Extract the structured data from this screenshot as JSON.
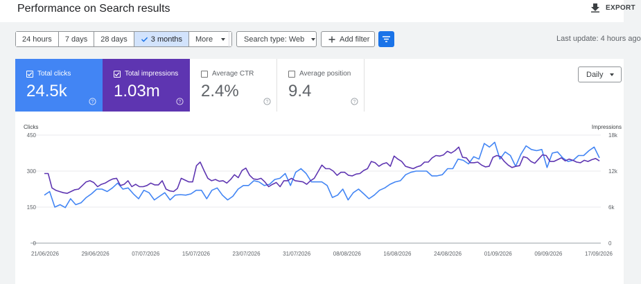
{
  "header": {
    "title": "Performance on Search results",
    "export_label": "EXPORT"
  },
  "toolbar": {
    "ranges": [
      {
        "label": "24 hours",
        "active": false
      },
      {
        "label": "7 days",
        "active": false
      },
      {
        "label": "28 days",
        "active": false
      },
      {
        "label": "3 months",
        "active": true
      },
      {
        "label": "More",
        "active": false
      }
    ],
    "search_type_label": "Search type: Web",
    "add_filter_label": "Add filter",
    "last_update": "Last update: 4 hours ago"
  },
  "metrics": {
    "clicks": {
      "label": "Total clicks",
      "value": "24.5k",
      "checked": true,
      "color": "#4285f4"
    },
    "impressions": {
      "label": "Total impressions",
      "value": "1.03m",
      "checked": true,
      "color": "#5e35b1"
    },
    "ctr": {
      "label": "Average CTR",
      "value": "2.4%",
      "checked": false
    },
    "position": {
      "label": "Average position",
      "value": "9.4",
      "checked": false
    }
  },
  "granularity": "Daily",
  "icons": {
    "export": "download-icon",
    "filter": "filter-list-icon",
    "help": "help-circle-icon",
    "check": "check-icon",
    "add": "plus-icon"
  },
  "chart_data": {
    "type": "line",
    "left_axis": {
      "title": "Clicks",
      "ticks": [
        "0",
        "150",
        "300",
        "450"
      ],
      "range": [
        0,
        450
      ]
    },
    "right_axis": {
      "title": "Impressions",
      "ticks": [
        "0",
        "6k",
        "12k",
        "18k"
      ],
      "range": [
        0,
        18000
      ]
    },
    "x_labels": [
      "21/06/2026",
      "29/06/2026",
      "07/07/2026",
      "15/07/2026",
      "23/07/2026",
      "31/07/2026",
      "08/08/2026",
      "16/08/2026",
      "24/08/2026",
      "01/09/2026",
      "09/09/2026",
      "17/09/2026"
    ],
    "grid": true,
    "series": [
      {
        "name": "Clicks",
        "color": "#4285f4",
        "axis": "left",
        "values": [
          200,
          215,
          150,
          160,
          148,
          185,
          160,
          168,
          190,
          205,
          225,
          225,
          215,
          230,
          250,
          225,
          230,
          205,
          185,
          220,
          210,
          180,
          195,
          210,
          180,
          200,
          202,
          200,
          205,
          220,
          220,
          185,
          220,
          230,
          200,
          180,
          195,
          225,
          240,
          240,
          260,
          255,
          240,
          245,
          265,
          270,
          290,
          240,
          295,
          310,
          290,
          255,
          255,
          255,
          240,
          190,
          200,
          225,
          180,
          210,
          225,
          205,
          185,
          200,
          220,
          230,
          245,
          255,
          260,
          285,
          295,
          300,
          300,
          300,
          280,
          280,
          285,
          310,
          310,
          350,
          345,
          330,
          360,
          350,
          415,
          400,
          420,
          350,
          380,
          365,
          320,
          370,
          405,
          390,
          385,
          390,
          315,
          375,
          380,
          355,
          340,
          345,
          365,
          365,
          385,
          400,
          355
        ]
      },
      {
        "name": "Impressions",
        "color": "#5e35b1",
        "axis": "right",
        "values": [
          11600,
          11600,
          9200,
          8800,
          8600,
          8400,
          8300,
          8600,
          8900,
          9000,
          9600,
          10200,
          10400,
          10100,
          9400,
          9800,
          10000,
          10400,
          10700,
          10800,
          9600,
          9800,
          10400,
          9400,
          9800,
          9400,
          9400,
          9600,
          10000,
          9700,
          9700,
          10400,
          9000,
          8700,
          8600,
          9100,
          10800,
          10500,
          10200,
          10200,
          12900,
          13500,
          12100,
          10800,
          10400,
          10600,
          10300,
          10400,
          10000,
          10600,
          11400,
          10900,
          12100,
          12500,
          11300,
          10700,
          10600,
          10800,
          10200,
          9400,
          9800,
          10100,
          9400,
          10400,
          10400,
          10800,
          10400,
          10300,
          10200,
          9800,
          10400,
          10800,
          11900,
          13000,
          12400,
          12400,
          12000,
          11300,
          11800,
          11800,
          11300,
          11200,
          11500,
          11600,
          12100,
          12400,
          13600,
          13400,
          12800,
          13200,
          13400,
          12800,
          14500,
          14000,
          13600,
          12800,
          12600,
          12400,
          12700,
          12900,
          13500,
          13500,
          14200,
          14600,
          14500,
          14700,
          15300,
          15000,
          15400,
          16000,
          14300,
          14200,
          13400,
          13400,
          13500,
          13000,
          12700,
          12800,
          14300,
          14600,
          14400,
          13600,
          13000,
          12600,
          12800,
          12900,
          14400,
          14200,
          13600,
          13300,
          14000,
          14700,
          14600,
          13600,
          13600,
          13900,
          14200,
          13700,
          14000,
          13800,
          13500,
          13400,
          13800,
          13600,
          13900,
          14100,
          13700
        ]
      }
    ]
  }
}
